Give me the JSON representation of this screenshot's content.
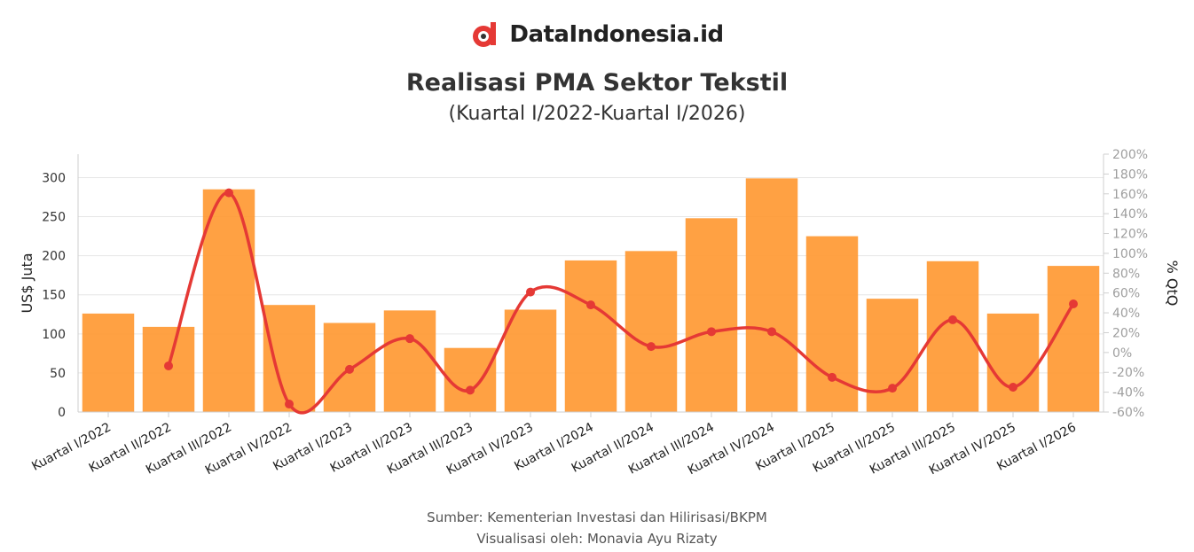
{
  "brand": {
    "name": "DataIndonesia.id",
    "logo_icon": "dataindonesia-logo-icon"
  },
  "title": "Realisasi PMA Sektor Tekstil",
  "subtitle": "(Kuartal I/2022-Kuartal I/2026)",
  "footer": {
    "source": "Sumber: Kementerian Investasi dan Hilirisasi/BKPM",
    "credit": "Visualisasi oleh: Monavia Ayu Rizaty"
  },
  "colors": {
    "bar": "#FF9933",
    "line": "#E53935",
    "grid": "#e6e6e6",
    "right_axis_text": "#9e9e9e"
  },
  "chart_data": {
    "type": "bar",
    "categories": [
      "Kuartal I/2022",
      "Kuartal II/2022",
      "Kuartal III/2022",
      "Kuartal IV/2022",
      "Kuartal I/2023",
      "Kuartal II/2023",
      "Kuartal III/2023",
      "Kuartal IV/2023",
      "Kuartal I/2024",
      "Kuartal II/2024",
      "Kuartal III/2024",
      "Kuartal IV/2024",
      "Kuartal I/2025",
      "Kuartal II/2025",
      "Kuartal III/2025",
      "Kuartal IV/2025",
      "Kuartal I/2026"
    ],
    "series": [
      {
        "type": "bar",
        "axis": "left",
        "values": [
          126,
          109,
          285,
          137,
          114,
          130,
          82,
          131,
          194,
          206,
          248,
          299,
          225,
          145,
          193,
          126,
          187
        ]
      },
      {
        "type": "line",
        "axis": "right",
        "values": [
          null,
          -13.5,
          161,
          -52,
          -17,
          14,
          -38,
          61,
          48,
          6,
          21,
          21,
          -25,
          -36,
          33,
          -35,
          49
        ]
      }
    ],
    "ylabel": "US$ Juta",
    "ylabel_right": "% QtQ",
    "ylim": [
      0,
      330
    ],
    "yticks": [
      0,
      50,
      100,
      150,
      200,
      250,
      300
    ],
    "ylim_right": [
      -60,
      200
    ],
    "yticks_right": [
      "-60%",
      "-40%",
      "-20%",
      "0%",
      "20%",
      "40%",
      "60%",
      "80%",
      "100%",
      "120%",
      "140%",
      "160%",
      "180%",
      "200%"
    ],
    "grid": true
  }
}
